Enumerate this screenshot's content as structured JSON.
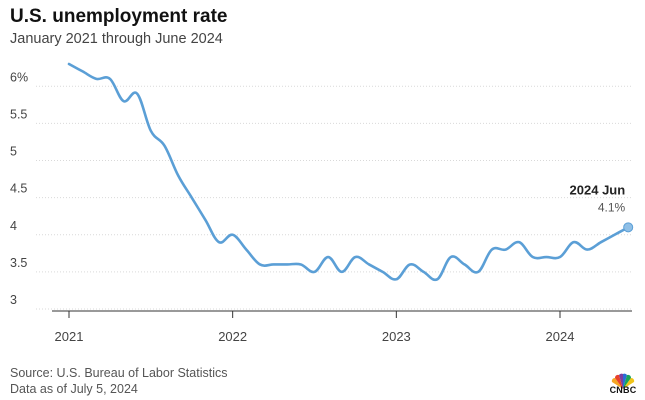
{
  "header": {
    "title": "U.S. unemployment rate",
    "subtitle": "January 2021 through June 2024"
  },
  "footer": {
    "source": "Source: U.S. Bureau of Labor Statistics",
    "as_of": "Data as of July 5, 2024",
    "logo_text": "CNBC"
  },
  "colors": {
    "line": "#5b9fd6",
    "marker": "#8fbfe6",
    "grid": "#d9d9d9",
    "axis": "#333333"
  },
  "chart_data": {
    "type": "line",
    "title": "U.S. unemployment rate",
    "subtitle": "January 2021 through June 2024",
    "y_ticks": [
      3,
      3.5,
      4,
      4.5,
      5,
      5.5,
      6
    ],
    "y_tick_labels": [
      "3",
      "3.5",
      "4",
      "4.5",
      "5",
      "5.5",
      "6%"
    ],
    "x_ticks": [
      2021,
      2022,
      2023,
      2024
    ],
    "x_tick_labels": [
      "2021",
      "2022",
      "2023",
      "2024"
    ],
    "ylim": [
      3,
      6.3
    ],
    "grid": "horizontal",
    "annotation": {
      "label": "2024 Jun",
      "value": "4.1%"
    },
    "series": [
      {
        "name": "Unemployment rate",
        "x": [
          "2021-01",
          "2021-02",
          "2021-03",
          "2021-04",
          "2021-05",
          "2021-06",
          "2021-07",
          "2021-08",
          "2021-09",
          "2021-10",
          "2021-11",
          "2021-12",
          "2022-01",
          "2022-02",
          "2022-03",
          "2022-04",
          "2022-05",
          "2022-06",
          "2022-07",
          "2022-08",
          "2022-09",
          "2022-10",
          "2022-11",
          "2022-12",
          "2023-01",
          "2023-02",
          "2023-03",
          "2023-04",
          "2023-05",
          "2023-06",
          "2023-07",
          "2023-08",
          "2023-09",
          "2023-10",
          "2023-11",
          "2023-12",
          "2024-01",
          "2024-02",
          "2024-03",
          "2024-04",
          "2024-05",
          "2024-06"
        ],
        "values": [
          6.3,
          6.2,
          6.1,
          6.1,
          5.8,
          5.9,
          5.4,
          5.2,
          4.8,
          4.5,
          4.2,
          3.9,
          4.0,
          3.8,
          3.6,
          3.6,
          3.6,
          3.6,
          3.5,
          3.7,
          3.5,
          3.7,
          3.6,
          3.5,
          3.4,
          3.6,
          3.5,
          3.4,
          3.7,
          3.6,
          3.5,
          3.8,
          3.8,
          3.9,
          3.7,
          3.7,
          3.7,
          3.9,
          3.8,
          3.9,
          4.0,
          4.1
        ]
      }
    ]
  }
}
